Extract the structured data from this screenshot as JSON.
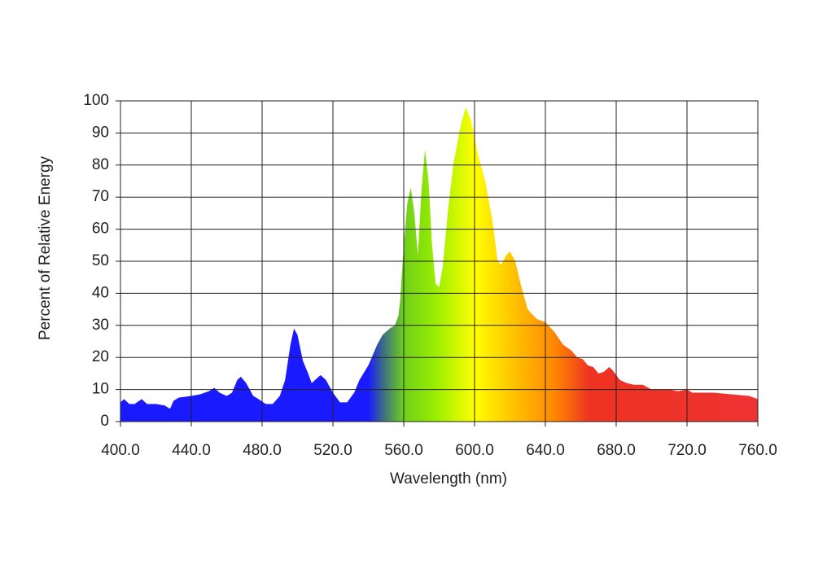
{
  "chart_data": {
    "type": "area",
    "xlabel": "Wavelength (nm)",
    "ylabel": "Percent of Relative Energy",
    "x": [
      400,
      402,
      405,
      408,
      412,
      415,
      420,
      425,
      428,
      430,
      433,
      440,
      445,
      450,
      453,
      456,
      460,
      463,
      466,
      468,
      471,
      475,
      478,
      482,
      486,
      490,
      493,
      496,
      498,
      500,
      503,
      506,
      508,
      510,
      513,
      516,
      520,
      524,
      528,
      532,
      535,
      540,
      545,
      548,
      552,
      555,
      557,
      558,
      560,
      562,
      564,
      566,
      568,
      570,
      572,
      574,
      576,
      578,
      580,
      582,
      585,
      588,
      592,
      595,
      598,
      602,
      606,
      610,
      613,
      615,
      618,
      620,
      623,
      626,
      630,
      635,
      640,
      645,
      650,
      655,
      658,
      661,
      664,
      667,
      670,
      673,
      676,
      678,
      682,
      686,
      690,
      695,
      700,
      705,
      710,
      715,
      720,
      723,
      727,
      735,
      745,
      755,
      760
    ],
    "values": [
      6,
      7,
      5.5,
      5.5,
      7,
      5.5,
      5.5,
      5,
      4,
      6.5,
      7.5,
      8,
      8.5,
      9.5,
      10.5,
      9,
      8,
      9,
      13,
      14,
      12,
      8,
      7,
      5.5,
      5.5,
      8,
      13,
      24,
      29,
      27,
      19,
      15,
      12,
      13,
      14.5,
      13,
      9,
      6,
      6,
      9,
      13,
      17.5,
      24,
      27,
      29,
      30,
      33,
      38,
      55,
      68,
      73,
      65,
      52,
      72,
      85,
      75,
      55,
      43,
      42,
      48,
      66,
      80,
      92,
      98,
      94,
      83,
      75,
      63,
      50,
      49,
      52,
      53,
      50,
      43,
      35,
      32,
      31,
      28,
      24,
      22,
      20,
      19.5,
      17.5,
      17,
      15,
      15.5,
      17,
      16,
      13,
      12,
      11.5,
      11.5,
      10,
      10,
      10,
      9.5,
      10,
      9,
      9,
      9,
      8.5,
      8,
      7
    ],
    "color_stops": [
      [
        540,
        "#1a1aff"
      ],
      [
        548,
        "#3a6a8a"
      ],
      [
        560,
        "#6fcf1a"
      ],
      [
        578,
        "#99ee00"
      ],
      [
        600,
        "#ffff00"
      ],
      [
        625,
        "#ffbb00"
      ],
      [
        645,
        "#ff8800"
      ],
      [
        665,
        "#ee3322"
      ],
      [
        760,
        "#ee3333"
      ]
    ],
    "xlim": [
      400,
      760
    ],
    "ylim": [
      0,
      100
    ],
    "xticks": [
      {
        "value": 400,
        "label": "400.0"
      },
      {
        "value": 440,
        "label": "440.0"
      },
      {
        "value": 480,
        "label": "480.0"
      },
      {
        "value": 520,
        "label": "520.0"
      },
      {
        "value": 560,
        "label": "560.0"
      },
      {
        "value": 600,
        "label": "600.0"
      },
      {
        "value": 640,
        "label": "640.0"
      },
      {
        "value": 680,
        "label": "680.0"
      },
      {
        "value": 720,
        "label": "720.0"
      },
      {
        "value": 760,
        "label": "760.0"
      }
    ],
    "yticks": [
      0,
      10,
      20,
      30,
      40,
      50,
      60,
      70,
      80,
      90,
      100
    ],
    "grid": true
  }
}
